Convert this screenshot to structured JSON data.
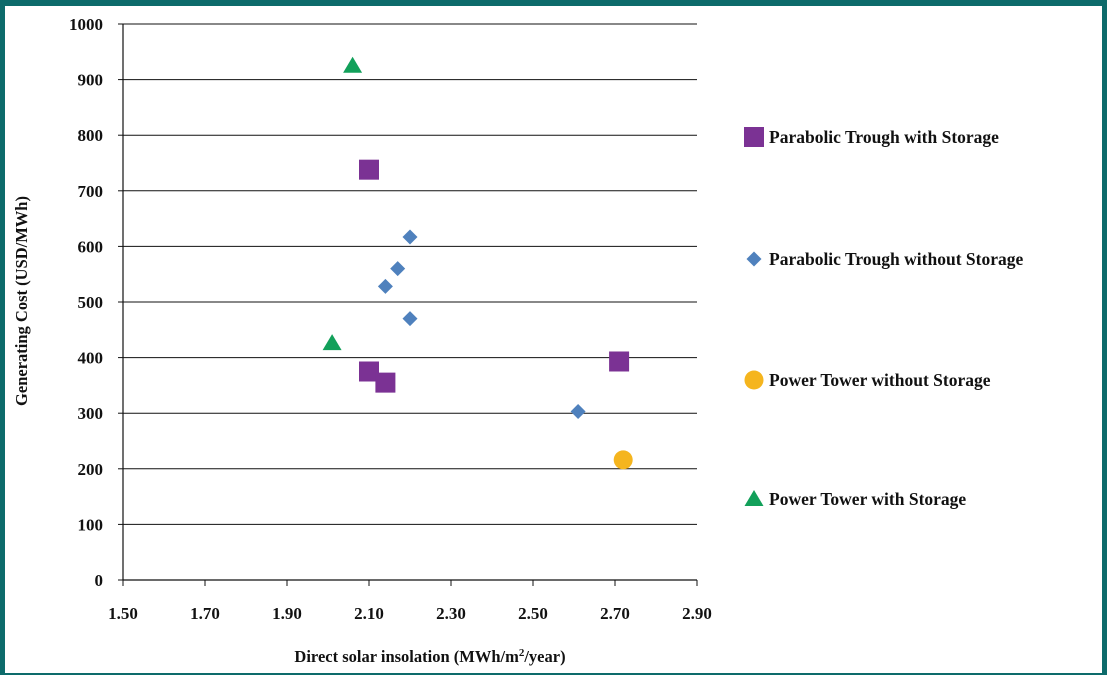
{
  "chart_data": {
    "type": "scatter",
    "title": "",
    "xlabel": "Direct solar insolation (MWh/m²/year)",
    "ylabel": "Generating Cost (USD/MWh)",
    "xlim": [
      1.5,
      2.9
    ],
    "ylim": [
      0,
      1000
    ],
    "xticks": [
      "1.50",
      "1.70",
      "1.90",
      "2.10",
      "2.30",
      "2.50",
      "2.70",
      "2.90"
    ],
    "yticks": [
      "0",
      "100",
      "200",
      "300",
      "400",
      "500",
      "600",
      "700",
      "800",
      "900",
      "1000"
    ],
    "grid": "horizontal",
    "legend_position": "right",
    "series": [
      {
        "name": "Parabolic Trough with Storage",
        "marker": "square",
        "color": "#7b3294",
        "points": [
          [
            2.1,
            738
          ],
          [
            2.1,
            375
          ],
          [
            2.14,
            355
          ],
          [
            2.71,
            393
          ]
        ]
      },
      {
        "name": "Parabolic Trough without Storage",
        "marker": "diamond",
        "color": "#4f81bd",
        "points": [
          [
            2.2,
            617
          ],
          [
            2.17,
            560
          ],
          [
            2.14,
            528
          ],
          [
            2.2,
            470
          ],
          [
            2.61,
            303
          ]
        ]
      },
      {
        "name": "Power Tower without Storage",
        "marker": "circle",
        "color": "#f5b51e",
        "points": [
          [
            2.72,
            216
          ]
        ]
      },
      {
        "name": "Power Tower with Storage",
        "marker": "triangle",
        "color": "#12a05a",
        "points": [
          [
            2.06,
            925
          ],
          [
            2.01,
            426
          ]
        ]
      }
    ]
  }
}
